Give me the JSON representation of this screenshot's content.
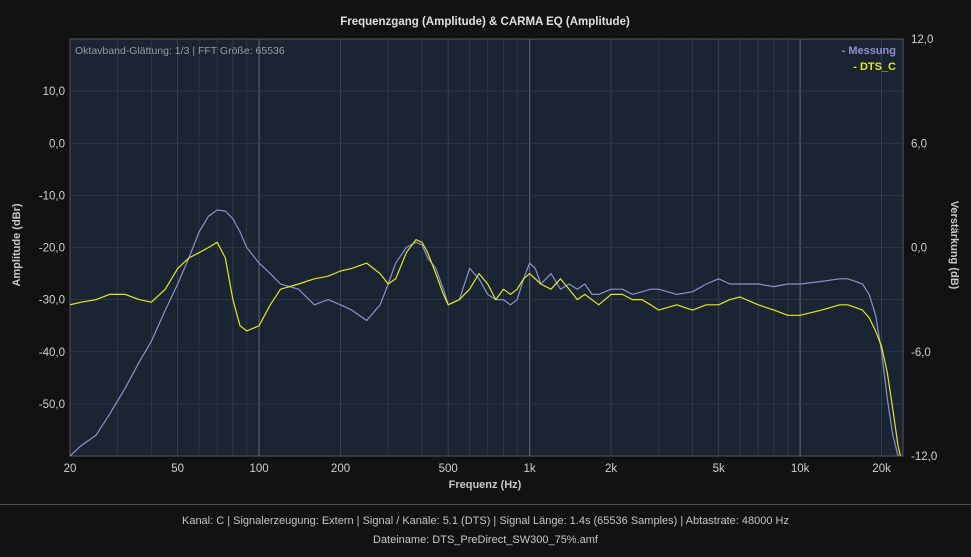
{
  "chart_data": {
    "type": "line",
    "title": "Frequenzgang (Amplitude) & CARMA EQ (Amplitude)",
    "subtitle": "Oktavband-Glättung: 1/3 | FFT Größe: 65536",
    "xlabel": "Frequenz (Hz)",
    "ylabel": "Amplitude (dBr)",
    "y2label": "Verstärkung (dB)",
    "xscale": "log",
    "xlim": [
      20,
      24000
    ],
    "ylim": [
      -60,
      20
    ],
    "y2lim": [
      -12,
      12
    ],
    "x_ticks": [
      "20",
      "50",
      "100",
      "200",
      "500",
      "1k",
      "2k",
      "5k",
      "10k",
      "20k"
    ],
    "y_ticks": [
      "10,0",
      "0,0",
      "-10,0",
      "-20,0",
      "-30,0",
      "-40,0",
      "-50,0"
    ],
    "y2_ticks": [
      "12,0",
      "6,0",
      "0,0",
      "-6,0",
      "-12,0"
    ],
    "grid": true,
    "legend_position": "top-right",
    "series": [
      {
        "name": "- Messung",
        "color": "#8d8fd0",
        "x": [
          20,
          22,
          25,
          28,
          32,
          36,
          40,
          45,
          50,
          55,
          60,
          65,
          70,
          75,
          80,
          85,
          90,
          100,
          110,
          120,
          140,
          160,
          180,
          200,
          220,
          250,
          280,
          300,
          320,
          350,
          380,
          400,
          420,
          450,
          480,
          500,
          550,
          600,
          650,
          700,
          750,
          800,
          850,
          900,
          950,
          1000,
          1050,
          1100,
          1150,
          1200,
          1300,
          1400,
          1500,
          1600,
          1700,
          1800,
          2000,
          2200,
          2400,
          2600,
          2800,
          3000,
          3500,
          4000,
          4500,
          5000,
          5500,
          6000,
          7000,
          8000,
          9000,
          10000,
          12000,
          14000,
          15000,
          16000,
          17000,
          18000,
          19000,
          20000,
          21000,
          22000,
          23000,
          24000
        ],
        "y": [
          -60,
          -58,
          -56,
          -52,
          -47,
          -42,
          -38,
          -32,
          -27,
          -22,
          -17,
          -14,
          -12.8,
          -13,
          -14.5,
          -17,
          -20,
          -23,
          -25,
          -27,
          -28,
          -31,
          -30,
          -31,
          -32,
          -34,
          -31,
          -27,
          -23,
          -20,
          -19,
          -19.5,
          -22,
          -24,
          -28,
          -31,
          -30,
          -24,
          -26,
          -29,
          -30,
          -30,
          -31,
          -30,
          -26,
          -23,
          -24,
          -27,
          -26,
          -25,
          -28,
          -27,
          -28,
          -27,
          -29,
          -29,
          -28,
          -28,
          -29,
          -28.5,
          -28,
          -28,
          -29,
          -28.5,
          -27,
          -26,
          -27,
          -27,
          -27,
          -27.5,
          -27,
          -27,
          -26.5,
          -26,
          -26,
          -26.5,
          -27,
          -29,
          -33,
          -40,
          -49,
          -56,
          -60,
          -62
        ]
      },
      {
        "name": "- DTS_C",
        "color": "#e6e61e",
        "x": [
          20,
          22,
          25,
          28,
          32,
          36,
          40,
          45,
          50,
          55,
          60,
          65,
          70,
          75,
          80,
          85,
          90,
          95,
          100,
          110,
          120,
          140,
          160,
          180,
          200,
          220,
          250,
          280,
          300,
          320,
          350,
          380,
          400,
          420,
          450,
          480,
          500,
          550,
          600,
          650,
          700,
          750,
          800,
          850,
          900,
          950,
          1000,
          1100,
          1200,
          1300,
          1400,
          1500,
          1600,
          1800,
          2000,
          2200,
          2400,
          2600,
          2800,
          3000,
          3500,
          4000,
          4500,
          5000,
          5500,
          6000,
          7000,
          8000,
          9000,
          10000,
          12000,
          14000,
          15000,
          16000,
          17000,
          18000,
          19000,
          20000,
          21000,
          22000,
          23000,
          24000
        ],
        "y": [
          -31,
          -30.5,
          -30,
          -29,
          -29,
          -30,
          -30.5,
          -28,
          -24,
          -22,
          -21,
          -20,
          -19,
          -22,
          -30,
          -35,
          -36,
          -35.5,
          -35,
          -31,
          -28,
          -27,
          -26,
          -25.5,
          -24.5,
          -24,
          -23,
          -25,
          -27,
          -26,
          -21,
          -18.5,
          -19,
          -21,
          -25,
          -29,
          -31,
          -30,
          -28,
          -25,
          -27,
          -30,
          -28,
          -29,
          -28,
          -26,
          -25,
          -27,
          -28,
          -26,
          -28,
          -30,
          -29,
          -31,
          -29,
          -29,
          -30,
          -30,
          -31,
          -32,
          -31,
          -32,
          -31,
          -31,
          -30,
          -29.5,
          -31,
          -32,
          -33,
          -33,
          -32,
          -31,
          -31,
          -31.5,
          -32,
          -33.5,
          -36,
          -39,
          -44,
          -51,
          -58,
          -62
        ]
      }
    ]
  },
  "footer": {
    "line1": "Kanal: C  |  Signalerzeugung: Extern   |  Signal / Kanäle: 5.1 (DTS)  |  Signal Länge: 1.4s (65536 Samples)  |  Abtastrate: 48000 Hz",
    "line2": "Dateiname: DTS_PreDirect_SW300_75%.amf"
  }
}
